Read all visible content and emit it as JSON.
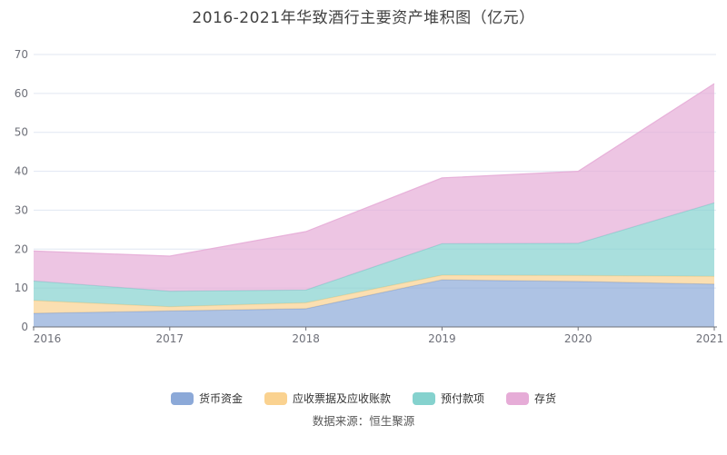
{
  "title": "2016-2021年华致酒行主要资产堆积图（亿元）",
  "source": "数据来源：恒生聚源",
  "colors": {
    "grid": "#E0E7F2",
    "axis": "#6E7079",
    "tick_label": "#6E7079",
    "title_text": "#404040",
    "legend_text": "#333333",
    "source_text": "#595959",
    "background": "#FFFFFF"
  },
  "chart_data": {
    "type": "area",
    "stacked": true,
    "title": "2016-2021年华致酒行主要资产堆积图（亿元）",
    "x": [
      "2016",
      "2017",
      "2018",
      "2019",
      "2020",
      "2021"
    ],
    "series": [
      {
        "name": "货币资金",
        "color": "#8CA9D8",
        "values": [
          3.5,
          4.1,
          4.7,
          12.1,
          11.7,
          11.0
        ]
      },
      {
        "name": "应收票据及应收账款",
        "color": "#FAD290",
        "values": [
          3.3,
          1.1,
          1.5,
          1.2,
          1.5,
          2.0
        ]
      },
      {
        "name": "预付款项",
        "color": "#85D2CE",
        "values": [
          5.0,
          4.0,
          3.3,
          8.1,
          8.3,
          18.9
        ]
      },
      {
        "name": "存货",
        "color": "#E6ACD7",
        "values": [
          7.7,
          9.0,
          15.0,
          16.9,
          18.5,
          30.6
        ]
      }
    ],
    "stack_totals": [
      19.5,
      18.2,
      24.5,
      38.3,
      40.0,
      62.5
    ],
    "xlabel": "",
    "ylabel": "",
    "ylim": [
      0,
      70
    ],
    "yticks": [
      0,
      10,
      20,
      30,
      40,
      50,
      60,
      70
    ],
    "grid": true,
    "legend_position": "bottom",
    "fill_opacity": 0.7
  }
}
